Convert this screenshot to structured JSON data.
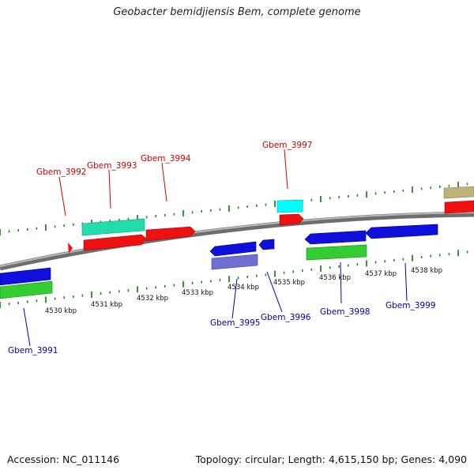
{
  "title": "Geobacter bemidjiensis Bem, complete genome",
  "footer": {
    "accession": "Accession: NC_011146",
    "topology": "Topology: circular; Length: 4,615,150 bp; Genes: 4,090"
  },
  "colors": {
    "backbone": "#8c8c8c",
    "tick": "#1f8a1f",
    "plus_label": "#cc0000",
    "minus_label": "#0000aa",
    "red": "#ee1111",
    "blue": "#1010dd",
    "green": "#33cc33",
    "teal": "#22ddaa",
    "cyan": "#00ffff",
    "slate": "#6f6fd2",
    "olive": "#bdb37a"
  },
  "scale": {
    "ticks": [
      {
        "label": "4530 kbp"
      },
      {
        "label": "4531 kbp"
      },
      {
        "label": "4532 kbp"
      },
      {
        "label": "4533 kbp"
      },
      {
        "label": "4534 kbp"
      },
      {
        "label": "4535 kbp"
      },
      {
        "label": "4536 kbp"
      },
      {
        "label": "4537 kbp"
      },
      {
        "label": "4538 kbp"
      }
    ]
  },
  "genes": [
    {
      "label": "Gbem_3992",
      "strand": "plus"
    },
    {
      "label": "Gbem_3993",
      "strand": "plus"
    },
    {
      "label": "Gbem_3994",
      "strand": "plus"
    },
    {
      "label": "Gbem_3997",
      "strand": "plus"
    },
    {
      "label": "Gbem_3991",
      "strand": "minus"
    },
    {
      "label": "Gbem_3995",
      "strand": "minus"
    },
    {
      "label": "Gbem_3996",
      "strand": "minus"
    },
    {
      "label": "Gbem_3998",
      "strand": "minus"
    },
    {
      "label": "Gbem_3999",
      "strand": "minus"
    }
  ]
}
